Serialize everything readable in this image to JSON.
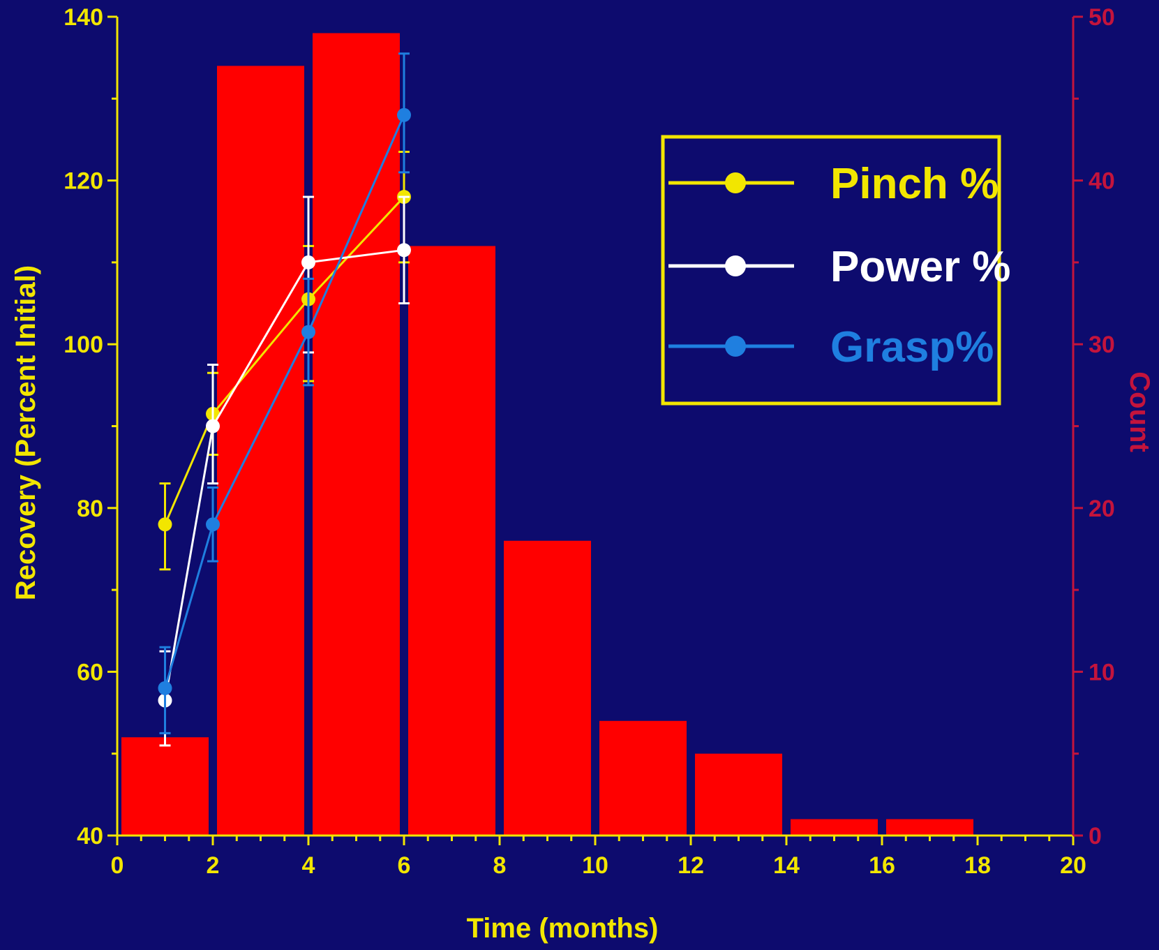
{
  "chart_data": {
    "type": "bar+line",
    "background_color": "#0d0b6e",
    "xlabel": "Time (months)",
    "ylabel_left": "Recovery (Percent Initial)",
    "ylabel_right": "Count",
    "xlim": [
      0,
      20
    ],
    "ylim_left": [
      40,
      140
    ],
    "ylim_right": [
      0,
      50
    ],
    "x_ticks": [
      "0",
      "2",
      "4",
      "6",
      "8",
      "10",
      "12",
      "14",
      "16",
      "18",
      "20"
    ],
    "y_left_ticks": [
      "40",
      "60",
      "80",
      "100",
      "120",
      "140"
    ],
    "y_right_ticks": [
      "0",
      "10",
      "20",
      "30",
      "40",
      "50"
    ],
    "grid": false,
    "legend_position": "top-right",
    "histogram": {
      "name": "Count",
      "color": "#ff0000",
      "bins": [
        {
          "x0": 0,
          "x1": 2,
          "count": 6
        },
        {
          "x0": 2,
          "x1": 4,
          "count": 47
        },
        {
          "x0": 4,
          "x1": 6,
          "count": 49
        },
        {
          "x0": 6,
          "x1": 8,
          "count": 36
        },
        {
          "x0": 8,
          "x1": 10,
          "count": 18
        },
        {
          "x0": 10,
          "x1": 12,
          "count": 7
        },
        {
          "x0": 12,
          "x1": 14,
          "count": 5
        },
        {
          "x0": 14,
          "x1": 16,
          "count": 1
        },
        {
          "x0": 16,
          "x1": 18,
          "count": 1
        }
      ]
    },
    "series": [
      {
        "name": "Pinch %",
        "color": "#f2e600",
        "x": [
          1,
          2,
          4,
          6
        ],
        "values": [
          78,
          91.5,
          105.5,
          118
        ],
        "err_low": [
          72.5,
          86.5,
          95.5,
          110
        ],
        "err_high": [
          83,
          96.5,
          112,
          123.5
        ]
      },
      {
        "name": "Power %",
        "color": "#ffffff",
        "x": [
          1,
          2,
          4,
          6
        ],
        "values": [
          56.5,
          90,
          110,
          111.5
        ],
        "err_low": [
          51,
          83,
          99,
          105
        ],
        "err_high": [
          62.5,
          97.5,
          118,
          118
        ]
      },
      {
        "name": "Grasp%",
        "color": "#1f7fe0",
        "x": [
          1,
          2,
          4,
          6
        ],
        "values": [
          58,
          78,
          101.5,
          128
        ],
        "err_low": [
          52.5,
          73.5,
          95,
          121
        ],
        "err_high": [
          63,
          82.5,
          108,
          135.5
        ]
      }
    ]
  }
}
